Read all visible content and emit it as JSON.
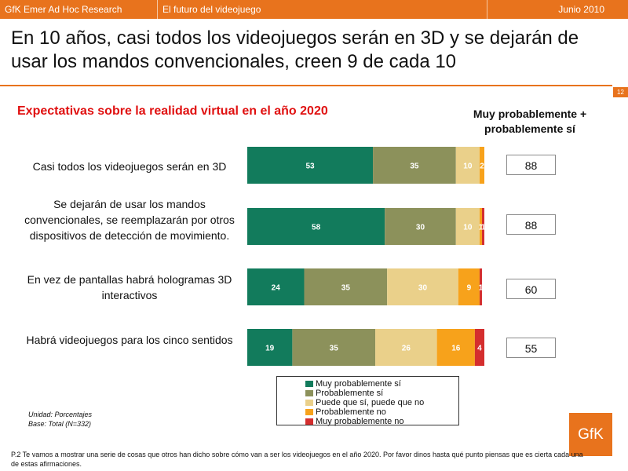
{
  "header": {
    "company": "GfK Emer Ad Hoc Research",
    "topic": "El futuro del videojuego",
    "date": "Junio 2010"
  },
  "headline": "En 10 años, casi todos los videojuegos serán en 3D y se dejarán de usar los mandos convencionales, creen 9 de cada 10",
  "page_number": "12",
  "subtitle": "Expectativas sobre la realidad virtual en el año 2020",
  "summary_header": "Muy probablemente + probablemente  sí",
  "notes": {
    "unit": "Unidad: Porcentajes",
    "base": "Base: Total (N=332)"
  },
  "logo_text": "GfK",
  "footnote": "P.2 Te vamos a mostrar una serie de cosas que otros han dicho sobre cómo van a ser los videojuegos en el año 2020. Por favor dinos hasta qué punto piensas que es cierta cada una de estas afirmaciones.",
  "chart_data": {
    "type": "bar",
    "orientation": "horizontal",
    "stacked": true,
    "categories": [
      "Casi todos los videojuegos serán en 3D",
      "Se dejarán de usar los mandos convencionales, se reemplazarán por otros dispositivos de detección de movimiento.",
      "En vez de pantallas habrá hologramas 3D interactivos",
      "Habrá videojuegos para los cinco sentidos"
    ],
    "series": [
      {
        "name": "Muy probablemente sí",
        "color": "#127b5c",
        "values": [
          53,
          58,
          24,
          19
        ]
      },
      {
        "name": "Probablemente sí",
        "color": "#8c915b",
        "values": [
          35,
          30,
          35,
          35
        ]
      },
      {
        "name": "Puede que sí, puede que no",
        "color": "#ead08a",
        "values": [
          10,
          10,
          30,
          26
        ]
      },
      {
        "name": "Probablemente no",
        "color": "#f7a21b",
        "values": [
          2,
          1,
          9,
          16
        ]
      },
      {
        "name": "Muy probablemente no",
        "color": "#d42e2e",
        "values": [
          0,
          1,
          1,
          4
        ]
      }
    ],
    "summary_values": [
      88,
      88,
      60,
      55
    ],
    "xlim": [
      0,
      100
    ],
    "legend_position": "bottom",
    "grid": false
  }
}
